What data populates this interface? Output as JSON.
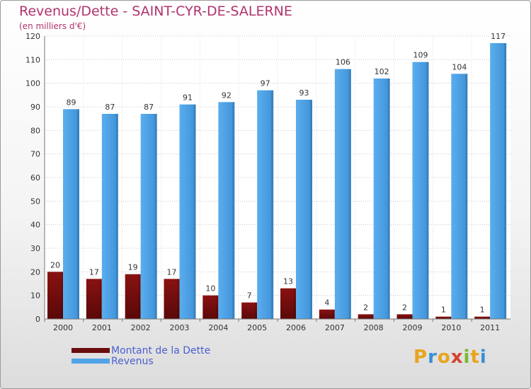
{
  "chart_data": {
    "type": "bar",
    "title": "Revenus/Dette - SAINT-CYR-DE-SALERNE",
    "subtitle": "(en milliers d'€)",
    "categories": [
      "2000",
      "2001",
      "2002",
      "2003",
      "2004",
      "2005",
      "2006",
      "2007",
      "2008",
      "2009",
      "2010",
      "2011"
    ],
    "series": [
      {
        "name": "Montant de la Dette",
        "color": "#7a1010",
        "values": [
          20,
          17,
          19,
          17,
          10,
          7,
          13,
          4,
          2,
          2,
          1,
          1
        ]
      },
      {
        "name": "Revenus",
        "color": "#4fa3e6",
        "values": [
          89,
          87,
          87,
          91,
          92,
          97,
          93,
          106,
          102,
          109,
          104,
          117
        ]
      }
    ],
    "ylim": [
      0,
      120
    ],
    "yticks": [
      0,
      10,
      20,
      30,
      40,
      50,
      60,
      70,
      80,
      90,
      100,
      110,
      120
    ],
    "grid": true,
    "legend_position": "bottom-left"
  },
  "logo": {
    "text": "Proxiti",
    "letters": [
      "P",
      "r",
      "o",
      "x",
      "i",
      "t",
      "i"
    ],
    "colors": [
      "#e8a41c",
      "#3b8fd4",
      "#e8a41c",
      "#d4442e",
      "#7ab82e",
      "#e8a41c",
      "#3b8fd4"
    ]
  }
}
